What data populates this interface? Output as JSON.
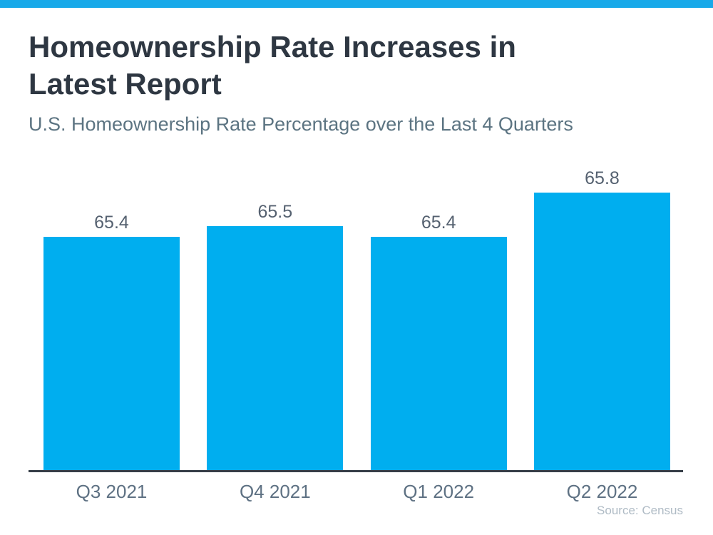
{
  "page": {
    "background": "#ffffff",
    "accent_bar_color": "#18A9E9"
  },
  "header": {
    "title": "Homeownership Rate Increases in Latest Report",
    "subtitle": "U.S. Homeownership Rate Percentage over the Last 4 Quarters"
  },
  "chart_data": {
    "type": "bar",
    "title": "Homeownership Rate Increases in Latest Report",
    "subtitle": "U.S. Homeownership Rate Percentage over the Last 4 Quarters",
    "categories": [
      "Q3 2021",
      "Q4 2021",
      "Q1 2022",
      "Q2 2022"
    ],
    "values": [
      65.4,
      65.5,
      65.4,
      65.8
    ],
    "value_labels": [
      "65.4",
      "65.5",
      "65.4",
      "65.8"
    ],
    "xlabel": "",
    "ylabel": "",
    "ylim": [
      63.3,
      66.0
    ],
    "grid": false,
    "legend": false,
    "bar_color": "#00AEEF",
    "axis_line_color": "#363E47",
    "value_label_color": "#556170",
    "tick_label_color": "#5E7183",
    "source_note": "Source: Census"
  },
  "footer": {
    "source": "Source: Census"
  }
}
